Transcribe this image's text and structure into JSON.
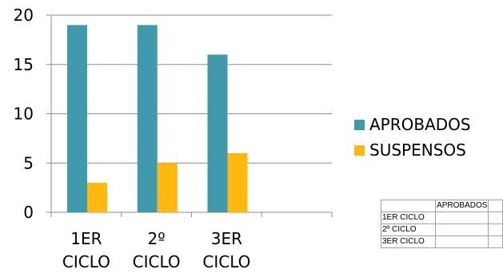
{
  "chart_data": {
    "type": "bar",
    "categories": [
      [
        "1ER",
        "CICLO"
      ],
      [
        "2º",
        "CICLO"
      ],
      [
        "3ER",
        "CICLO"
      ],
      [
        "",
        ""
      ]
    ],
    "series": [
      {
        "name": "APROBADOS",
        "color": "#4199ad",
        "values": [
          19,
          19,
          16,
          null
        ]
      },
      {
        "name": "SUSPENSOS",
        "color": "#ffb80d",
        "values": [
          3,
          5,
          6,
          null
        ]
      }
    ],
    "ylim": [
      0,
      20
    ],
    "yticks": [
      "0",
      "5",
      "10",
      "15",
      "20"
    ],
    "ytick_values": [
      0,
      5,
      10,
      15,
      20
    ],
    "grid": true,
    "legend_placement": "right"
  },
  "table": {
    "header": [
      "",
      "APROBADOS",
      ""
    ],
    "rows": [
      [
        "1ER CICLO",
        "",
        ""
      ],
      [
        "2º CICLO",
        "",
        ""
      ],
      [
        "3ER CICLO",
        "",
        ""
      ]
    ]
  }
}
